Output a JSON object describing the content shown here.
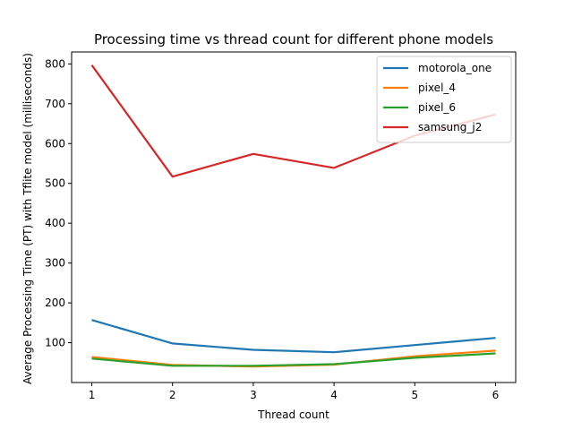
{
  "chart_data": {
    "type": "line",
    "title": "Processing time vs thread count for different phone models",
    "xlabel": "Thread count",
    "ylabel": "Average Processing Time (PT) with Tflite model (milliseconds)",
    "x": [
      1,
      2,
      3,
      4,
      5,
      6
    ],
    "xlim": [
      0.75,
      6.25
    ],
    "ylim": [
      0,
      830
    ],
    "xticks": [
      1,
      2,
      3,
      4,
      5,
      6
    ],
    "yticks": [
      100,
      200,
      300,
      400,
      500,
      600,
      700,
      800
    ],
    "grid": false,
    "legend_position": "upper right",
    "series": [
      {
        "name": "motorola_one",
        "color": "#1f77b4",
        "values": [
          157,
          98,
          82,
          76,
          94,
          112
        ]
      },
      {
        "name": "pixel_4",
        "color": "#ff7f0e",
        "values": [
          64,
          44,
          40,
          45,
          66,
          80
        ]
      },
      {
        "name": "pixel_6",
        "color": "#2ca02c",
        "values": [
          60,
          42,
          42,
          46,
          62,
          73
        ]
      },
      {
        "name": "samsung_j2",
        "color": "#d62728",
        "values": [
          797,
          517,
          574,
          539,
          620,
          673
        ]
      }
    ]
  }
}
